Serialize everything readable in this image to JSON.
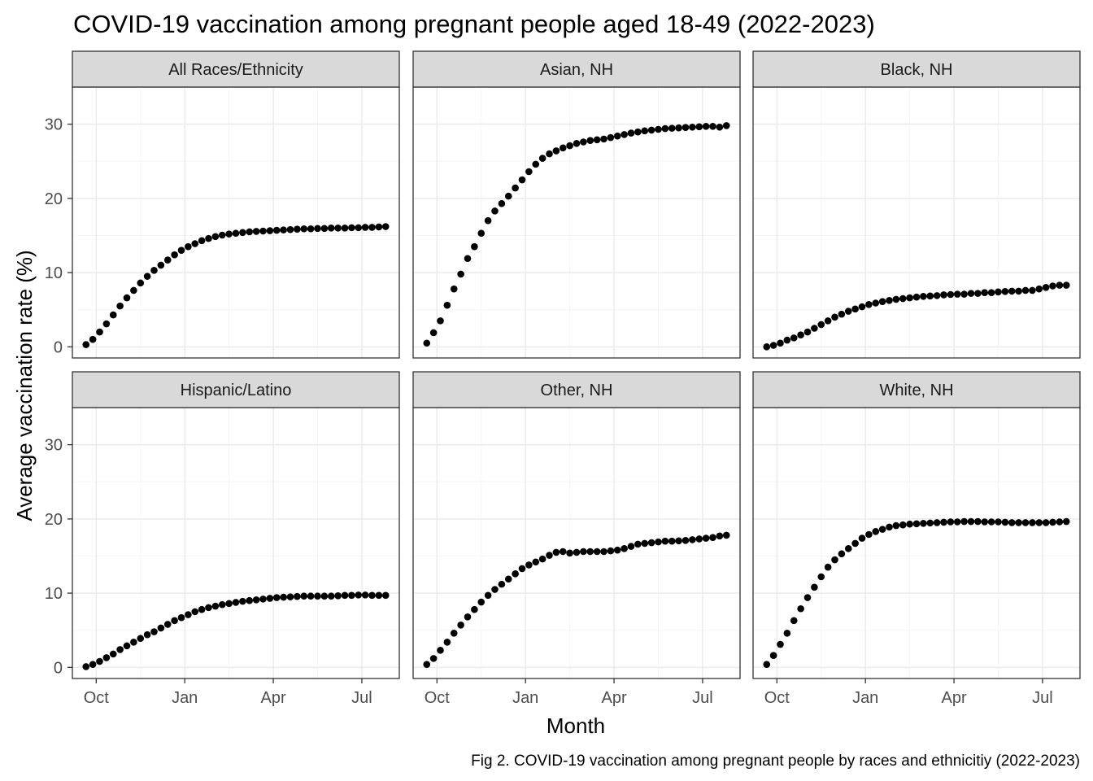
{
  "chart_data": {
    "type": "scatter",
    "title": "COVID-19 vaccination among pregnant people aged 18-49 (2022-2023)",
    "xlabel": "Month",
    "ylabel": "Average vaccination rate (%)",
    "caption": "Fig 2. COVID-19 vaccination among pregnant people by races and ethnicitiy (2022-2023)",
    "x_ticks": [
      {
        "label": "Oct",
        "week": 1.5
      },
      {
        "label": "Jan",
        "week": 14.5
      },
      {
        "label": "Apr",
        "week": 27.5
      },
      {
        "label": "Jul",
        "week": 40.5
      }
    ],
    "xlim": [
      -2,
      46
    ],
    "ylim": [
      -1.5,
      35
    ],
    "y_ticks": [
      0,
      10,
      20,
      30
    ],
    "grid": true,
    "legend": "none",
    "facet_layout": {
      "rows": 2,
      "cols": 3
    },
    "x_note": "weekly observations, week 0 = mid-September 2022",
    "x_weeks": [
      0,
      1,
      2,
      3,
      4,
      5,
      6,
      7,
      8,
      9,
      10,
      11,
      12,
      13,
      14,
      15,
      16,
      17,
      18,
      19,
      20,
      21,
      22,
      23,
      24,
      25,
      26,
      27,
      28,
      29,
      30,
      31,
      32,
      33,
      34,
      35,
      36,
      37,
      38,
      39,
      40,
      41,
      42,
      43,
      44
    ],
    "series": [
      {
        "name": "All Races/Ethnicity",
        "values": [
          0.3,
          1.0,
          2.0,
          3.1,
          4.3,
          5.5,
          6.6,
          7.6,
          8.6,
          9.5,
          10.3,
          11.0,
          11.7,
          12.4,
          13.0,
          13.5,
          13.9,
          14.3,
          14.6,
          14.85,
          15.05,
          15.2,
          15.3,
          15.4,
          15.5,
          15.55,
          15.6,
          15.65,
          15.7,
          15.75,
          15.8,
          15.85,
          15.9,
          15.9,
          15.95,
          15.95,
          16.0,
          16.0,
          16.0,
          16.05,
          16.05,
          16.1,
          16.1,
          16.15,
          16.2
        ]
      },
      {
        "name": "Asian, NH",
        "values": [
          0.5,
          1.9,
          3.5,
          5.6,
          7.8,
          9.8,
          11.9,
          13.5,
          15.3,
          17.0,
          18.3,
          19.3,
          20.3,
          21.4,
          22.5,
          23.6,
          24.6,
          25.4,
          26.0,
          26.4,
          26.8,
          27.1,
          27.4,
          27.6,
          27.8,
          27.9,
          28.0,
          28.2,
          28.4,
          28.6,
          28.8,
          28.95,
          29.1,
          29.2,
          29.3,
          29.4,
          29.45,
          29.5,
          29.55,
          29.6,
          29.65,
          29.7,
          29.7,
          29.6,
          29.8
        ]
      },
      {
        "name": "Black, NH",
        "values": [
          0.0,
          0.2,
          0.5,
          0.9,
          1.2,
          1.6,
          2.0,
          2.5,
          3.0,
          3.5,
          4.0,
          4.4,
          4.8,
          5.1,
          5.4,
          5.7,
          5.9,
          6.1,
          6.25,
          6.4,
          6.5,
          6.6,
          6.7,
          6.8,
          6.85,
          6.9,
          7.0,
          7.05,
          7.1,
          7.1,
          7.2,
          7.2,
          7.3,
          7.3,
          7.4,
          7.45,
          7.5,
          7.5,
          7.6,
          7.6,
          7.8,
          8.0,
          8.2,
          8.3,
          8.3
        ]
      },
      {
        "name": "Hispanic/Latino",
        "values": [
          0.1,
          0.4,
          0.8,
          1.3,
          1.8,
          2.4,
          2.9,
          3.4,
          3.9,
          4.4,
          4.8,
          5.3,
          5.8,
          6.3,
          6.7,
          7.1,
          7.5,
          7.8,
          8.05,
          8.25,
          8.45,
          8.6,
          8.75,
          8.9,
          9.0,
          9.1,
          9.2,
          9.3,
          9.4,
          9.45,
          9.5,
          9.55,
          9.6,
          9.6,
          9.6,
          9.6,
          9.6,
          9.65,
          9.7,
          9.7,
          9.75,
          9.75,
          9.7,
          9.7,
          9.7
        ]
      },
      {
        "name": "Other, NH",
        "values": [
          0.4,
          1.2,
          2.3,
          3.4,
          4.6,
          5.7,
          6.8,
          7.8,
          8.8,
          9.7,
          10.5,
          11.2,
          11.9,
          12.6,
          13.3,
          13.8,
          14.2,
          14.6,
          15.1,
          15.5,
          15.6,
          15.4,
          15.5,
          15.6,
          15.6,
          15.6,
          15.6,
          15.7,
          15.8,
          16.0,
          16.3,
          16.6,
          16.7,
          16.8,
          16.9,
          17.0,
          17.0,
          17.05,
          17.1,
          17.2,
          17.3,
          17.4,
          17.5,
          17.7,
          17.8
        ]
      },
      {
        "name": "White, NH",
        "values": [
          0.4,
          1.6,
          3.1,
          4.6,
          6.3,
          7.9,
          9.4,
          10.8,
          12.2,
          13.5,
          14.5,
          15.3,
          16.0,
          16.7,
          17.4,
          17.9,
          18.3,
          18.6,
          18.9,
          19.1,
          19.2,
          19.3,
          19.35,
          19.4,
          19.45,
          19.5,
          19.55,
          19.6,
          19.6,
          19.65,
          19.65,
          19.65,
          19.6,
          19.6,
          19.6,
          19.55,
          19.5,
          19.5,
          19.5,
          19.5,
          19.5,
          19.5,
          19.55,
          19.6,
          19.65
        ]
      }
    ]
  },
  "colors": {
    "points": "#000000",
    "strip_fill": "#d9d9d9",
    "panel_border": "#333333",
    "grid_major": "#ebebeb",
    "grid_minor": "#f5f5f5",
    "tick": "#333333"
  }
}
